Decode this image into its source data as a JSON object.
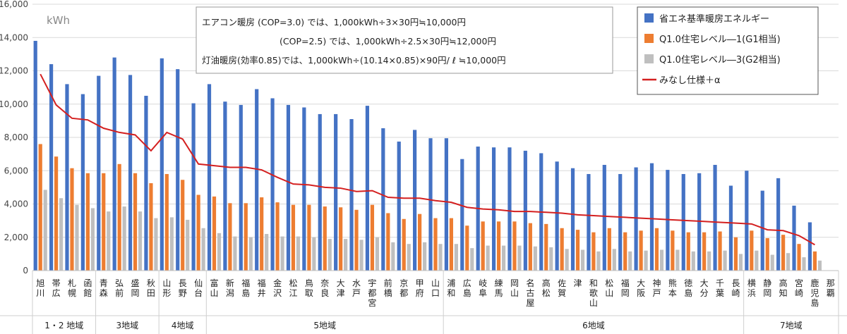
{
  "chart_data": {
    "type": "bar",
    "unit_label": "kWh",
    "ylim": [
      0,
      16000
    ],
    "yticks": [
      "0",
      "2,000",
      "4,000",
      "6,000",
      "8,000",
      "10,000",
      "12,000",
      "14,000",
      "16,000"
    ],
    "categories": [
      "旭川",
      "帯広",
      "札幌",
      "函館",
      "青森",
      "弘前",
      "盛岡",
      "秋田",
      "山形",
      "長野",
      "仙台",
      "富山",
      "新潟",
      "福島",
      "福井",
      "金沢",
      "松江",
      "鳥取",
      "奈良",
      "大津",
      "水戸",
      "宇都宮",
      "前橋",
      "京都",
      "甲府",
      "山口",
      "浦和",
      "広島",
      "岐阜",
      "練馬",
      "岡山",
      "名古屋",
      "高松",
      "佐賀",
      "津",
      "和歌山",
      "松山",
      "福岡",
      "大阪",
      "神戸",
      "熊本",
      "徳島",
      "大分",
      "千葉",
      "長崎",
      "横浜",
      "静岡",
      "高知",
      "宮崎",
      "鹿児島",
      "那覇"
    ],
    "series": [
      {
        "name": "省エネ基準暖房エネルギー",
        "kind": "bar",
        "color": "#4472C4",
        "values": [
          13800,
          12400,
          11200,
          10600,
          11700,
          12800,
          11750,
          10500,
          12750,
          12100,
          10050,
          11200,
          10150,
          9950,
          10900,
          10350,
          9950,
          9800,
          9400,
          9400,
          9100,
          9900,
          8550,
          7750,
          8450,
          7950,
          7950,
          6700,
          7450,
          7400,
          7400,
          7200,
          7050,
          6550,
          6150,
          5800,
          6350,
          5800,
          6200,
          6450,
          6050,
          5800,
          5850,
          6350,
          5100,
          6000,
          4800,
          5550,
          3900,
          2900,
          null
        ]
      },
      {
        "name": "Q1.0住宅レベル―1(G1相当)",
        "kind": "bar",
        "color": "#ED7D31",
        "values": [
          7600,
          6850,
          6150,
          5850,
          5850,
          6400,
          5850,
          5250,
          5800,
          5450,
          4550,
          4450,
          4050,
          4050,
          4400,
          4100,
          3950,
          3950,
          3850,
          3800,
          3650,
          3950,
          3450,
          3100,
          3400,
          3150,
          3150,
          2700,
          2950,
          2950,
          2950,
          2850,
          2800,
          2550,
          2450,
          2300,
          2550,
          2300,
          2400,
          2550,
          2400,
          2300,
          2300,
          2350,
          2000,
          2400,
          1950,
          2150,
          1600,
          1150,
          null
        ]
      },
      {
        "name": "Q1.0住宅レベル―3(G2相当)",
        "kind": "bar",
        "color": "#BFBFBF",
        "values": [
          4850,
          4350,
          3950,
          3750,
          3550,
          3850,
          3550,
          3150,
          3200,
          3050,
          2550,
          2250,
          2050,
          2000,
          2200,
          2050,
          2050,
          2000,
          1900,
          1900,
          1850,
          2000,
          1700,
          1600,
          1700,
          1600,
          1600,
          1350,
          1500,
          1500,
          1500,
          1450,
          1400,
          1300,
          1250,
          1150,
          1300,
          1150,
          1200,
          1250,
          1250,
          1150,
          1150,
          1200,
          1000,
          1200,
          950,
          1050,
          800,
          600,
          null
        ]
      },
      {
        "name": "みなし仕様＋α",
        "kind": "line",
        "color": "#D42020",
        "values": [
          11800,
          9950,
          9150,
          9050,
          8550,
          8300,
          8150,
          7200,
          8300,
          7900,
          6400,
          6300,
          6200,
          6200,
          6050,
          5600,
          5200,
          5150,
          5000,
          4950,
          4750,
          4800,
          4400,
          4350,
          4350,
          4200,
          4100,
          3800,
          3700,
          3650,
          3550,
          3550,
          3500,
          3450,
          3350,
          3300,
          3250,
          3200,
          3150,
          3100,
          3050,
          3000,
          2950,
          2900,
          2850,
          2800,
          2450,
          2400,
          2100,
          1550,
          null
        ]
      }
    ],
    "regions": [
      {
        "label": "1・2 地域",
        "count": 4
      },
      {
        "label": "3地域",
        "count": 4
      },
      {
        "label": "4地域",
        "count": 3
      },
      {
        "label": "5地域",
        "count": 15
      },
      {
        "label": "6地域",
        "count": 19
      },
      {
        "label": "7地域",
        "count": 6
      }
    ],
    "annotations": [
      "エアコン暖房 (COP=3.0) では、1,000kWh÷3×30円≒10,000円",
      "(COP=2.5) では、1,000kWh÷2.5×30円≒12,000円",
      "灯油暖房(効率0.85)では、1,000kWh÷(10.14×0.85)×90円/ ℓ ≒10,000円"
    ],
    "legend_position": "top-right"
  }
}
